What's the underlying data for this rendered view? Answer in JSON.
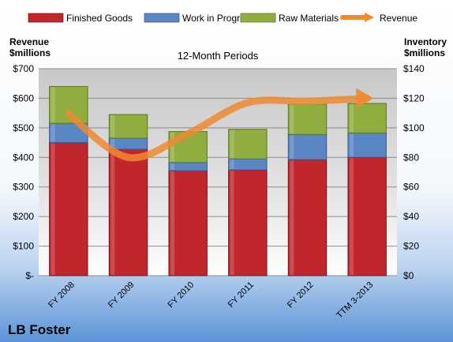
{
  "company": "LB Foster",
  "chart_data": {
    "type": "bar",
    "stacked": true,
    "title": "12-Month Periods",
    "left_axis_label_line1": "Revenue",
    "left_axis_label_line2": "$millions",
    "right_axis_label_line1": "Inventory",
    "right_axis_label_line2": "$millions",
    "categories": [
      "FY 2008",
      "FY 2009",
      "FY 2010",
      "FY 2011",
      "FY 2012",
      "TTM 3-2013"
    ],
    "left_ticks": [
      "$-",
      "$100",
      "$200",
      "$300",
      "$400",
      "$500",
      "$600",
      "$700"
    ],
    "right_ticks": [
      "$0",
      "$20",
      "$40",
      "$60",
      "$80",
      "$100",
      "$120",
      "$140"
    ],
    "revenue_ylim": [
      0,
      700
    ],
    "inventory_ylim": [
      0,
      140
    ],
    "grid": true,
    "legend_position": "top",
    "series": [
      {
        "name": "Finished Goods",
        "axis": "right",
        "color": "#c0272d",
        "values": [
          90,
          85.5,
          71,
          71.5,
          78.5,
          80
        ]
      },
      {
        "name": "Work in Progress",
        "axis": "right",
        "color": "#5b86c5",
        "values": [
          13,
          7.5,
          5.5,
          7.5,
          17,
          16.5
        ]
      },
      {
        "name": "Raw Materials",
        "axis": "right",
        "color": "#8fae3f",
        "values": [
          25,
          16,
          21,
          20,
          20.5,
          20
        ]
      },
      {
        "name": "Revenue",
        "axis": "left",
        "type": "line",
        "color": "#ee8a32",
        "values": [
          547,
          400,
          480,
          585,
          590,
          600
        ]
      }
    ]
  }
}
